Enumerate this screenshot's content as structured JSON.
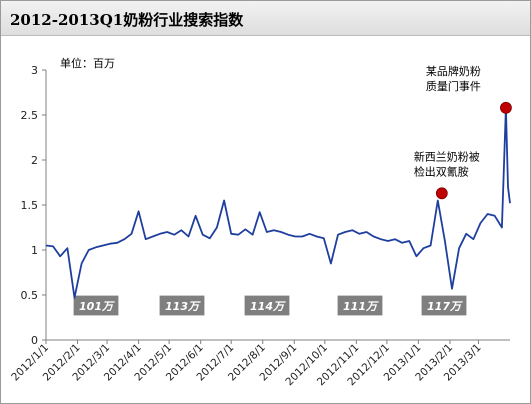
{
  "title": "2012-2013Q1奶粉行业搜索指数",
  "chart_data": {
    "type": "line",
    "title": "2012-2013Q1奶粉行业搜索指数",
    "unit_label": "单位：百万",
    "ylim": [
      0,
      3
    ],
    "y_ticks": [
      "0",
      "0.5",
      "1",
      "1.5",
      "2",
      "2.5",
      "3"
    ],
    "x_tick_labels": [
      "2012/1/1",
      "2012/2/1",
      "2012/3/1",
      "2012/4/1",
      "2012/5/1",
      "2012/6/1",
      "2012/7/1",
      "2012/8/1",
      "2012/9/1",
      "2012/10/1",
      "2012/11/1",
      "2012/12/1",
      "2013/1/1",
      "2013/2/1",
      "2013/3/1"
    ],
    "series": [
      {
        "color": "#1f3f9f",
        "x": [
          "2012-01-01",
          "2012-01-08",
          "2012-01-15",
          "2012-01-22",
          "2012-01-29",
          "2012-02-05",
          "2012-02-12",
          "2012-02-19",
          "2012-02-26",
          "2012-03-04",
          "2012-03-11",
          "2012-03-18",
          "2012-03-25",
          "2012-04-01",
          "2012-04-08",
          "2012-04-15",
          "2012-04-22",
          "2012-04-29",
          "2012-05-06",
          "2012-05-13",
          "2012-05-20",
          "2012-05-27",
          "2012-06-03",
          "2012-06-10",
          "2012-06-17",
          "2012-06-24",
          "2012-07-01",
          "2012-07-08",
          "2012-07-15",
          "2012-07-22",
          "2012-07-29",
          "2012-08-05",
          "2012-08-12",
          "2012-08-19",
          "2012-08-26",
          "2012-09-02",
          "2012-09-09",
          "2012-09-16",
          "2012-09-23",
          "2012-09-30",
          "2012-10-07",
          "2012-10-14",
          "2012-10-21",
          "2012-10-28",
          "2012-11-04",
          "2012-11-11",
          "2012-11-18",
          "2012-11-25",
          "2012-12-02",
          "2012-12-09",
          "2012-12-16",
          "2012-12-23",
          "2012-12-30",
          "2013-01-06",
          "2013-01-13",
          "2013-01-20",
          "2013-01-27",
          "2013-02-03",
          "2013-02-10",
          "2013-02-17",
          "2013-02-24",
          "2013-03-03",
          "2013-03-10",
          "2013-03-17",
          "2013-03-24",
          "2013-03-28",
          "2013-03-30",
          "2013-04-01"
        ],
        "values": [
          1.05,
          1.04,
          0.93,
          1.02,
          0.47,
          0.85,
          1.0,
          1.03,
          1.05,
          1.07,
          1.08,
          1.12,
          1.18,
          1.43,
          1.12,
          1.15,
          1.18,
          1.2,
          1.17,
          1.22,
          1.15,
          1.38,
          1.17,
          1.13,
          1.25,
          1.55,
          1.18,
          1.17,
          1.23,
          1.17,
          1.42,
          1.2,
          1.22,
          1.2,
          1.17,
          1.15,
          1.15,
          1.18,
          1.15,
          1.13,
          0.85,
          1.17,
          1.2,
          1.22,
          1.18,
          1.2,
          1.15,
          1.12,
          1.1,
          1.12,
          1.08,
          1.1,
          0.93,
          1.02,
          1.05,
          1.55,
          1.1,
          0.57,
          1.02,
          1.18,
          1.12,
          1.3,
          1.4,
          1.38,
          1.25,
          2.58,
          1.7,
          1.52
        ]
      }
    ],
    "annotations": [
      {
        "lines": [
          "新西兰奶粉被",
          "检出双氰胺"
        ],
        "x": "2013-01-24",
        "y": 1.63
      },
      {
        "lines": [
          "某品牌奶粉",
          "质量门事件"
        ],
        "x": "2013-03-28",
        "y": 2.58
      }
    ],
    "period_averages": [
      "101万",
      "113万",
      "114万",
      "111万",
      "117万"
    ],
    "grid": false,
    "legend": "none"
  }
}
